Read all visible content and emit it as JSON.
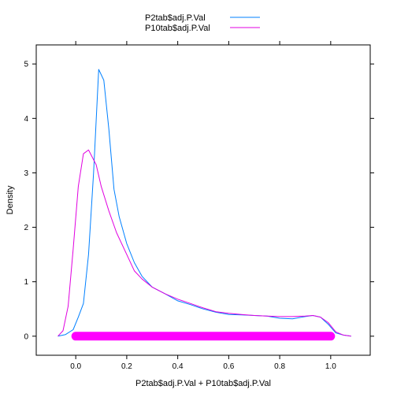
{
  "chart_data": {
    "type": "line",
    "title": "",
    "xlabel": "P2tab$adj.P.Val + P10tab$adj.P.Val",
    "ylabel": "Density",
    "xlim": [
      -0.155,
      1.155
    ],
    "ylim": [
      -0.35,
      5.35
    ],
    "x_ticks": [
      0.0,
      0.2,
      0.4,
      0.6,
      0.8,
      1.0
    ],
    "x_tick_labels": [
      "0.0",
      "0.2",
      "0.4",
      "0.6",
      "0.8",
      "1.0"
    ],
    "y_ticks": [
      0,
      1,
      2,
      3,
      4,
      5
    ],
    "y_tick_labels": [
      "0",
      "1",
      "2",
      "3",
      "4",
      "5"
    ],
    "grid": false,
    "legend_position": "top",
    "series": [
      {
        "name": "P2tab$adj.P.Val",
        "color": "#0080ff",
        "x": [
          -0.07,
          -0.04,
          -0.01,
          0.01,
          0.03,
          0.05,
          0.07,
          0.09,
          0.11,
          0.13,
          0.15,
          0.17,
          0.2,
          0.23,
          0.26,
          0.3,
          0.35,
          0.4,
          0.45,
          0.5,
          0.55,
          0.6,
          0.65,
          0.7,
          0.75,
          0.8,
          0.85,
          0.9,
          0.93,
          0.96,
          0.99,
          1.02,
          1.05,
          1.08
        ],
        "y": [
          0.0,
          0.03,
          0.12,
          0.35,
          0.6,
          1.5,
          3.0,
          4.9,
          4.7,
          3.8,
          2.7,
          2.2,
          1.7,
          1.35,
          1.1,
          0.9,
          0.78,
          0.65,
          0.58,
          0.5,
          0.44,
          0.4,
          0.39,
          0.38,
          0.37,
          0.33,
          0.32,
          0.36,
          0.38,
          0.35,
          0.22,
          0.06,
          0.02,
          0.0
        ]
      },
      {
        "name": "P10tab$adj.P.Val",
        "color": "#e000e0",
        "x": [
          -0.07,
          -0.05,
          -0.03,
          -0.01,
          0.01,
          0.03,
          0.05,
          0.08,
          0.1,
          0.13,
          0.16,
          0.2,
          0.23,
          0.26,
          0.3,
          0.35,
          0.4,
          0.45,
          0.5,
          0.55,
          0.6,
          0.65,
          0.7,
          0.75,
          0.8,
          0.85,
          0.9,
          0.93,
          0.96,
          0.99,
          1.02,
          1.05,
          1.08
        ],
        "y": [
          0.0,
          0.1,
          0.55,
          1.6,
          2.75,
          3.35,
          3.42,
          3.15,
          2.75,
          2.3,
          1.9,
          1.5,
          1.2,
          1.05,
          0.9,
          0.78,
          0.68,
          0.6,
          0.52,
          0.45,
          0.42,
          0.4,
          0.38,
          0.37,
          0.36,
          0.36,
          0.37,
          0.38,
          0.35,
          0.25,
          0.08,
          0.02,
          0.0
        ]
      }
    ],
    "rug": {
      "color": "#ff00ff",
      "x_range": [
        0.0,
        1.0
      ],
      "y": 0.0
    }
  }
}
